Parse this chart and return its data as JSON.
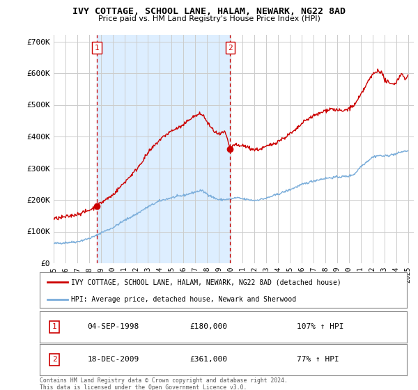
{
  "title": "IVY COTTAGE, SCHOOL LANE, HALAM, NEWARK, NG22 8AD",
  "subtitle": "Price paid vs. HM Land Registry's House Price Index (HPI)",
  "legend_label_red": "IVY COTTAGE, SCHOOL LANE, HALAM, NEWARK, NG22 8AD (detached house)",
  "legend_label_blue": "HPI: Average price, detached house, Newark and Sherwood",
  "annotation1_date": "04-SEP-1998",
  "annotation1_price": "£180,000",
  "annotation1_hpi": "107% ↑ HPI",
  "annotation2_date": "18-DEC-2009",
  "annotation2_price": "£361,000",
  "annotation2_hpi": "77% ↑ HPI",
  "footnote": "Contains HM Land Registry data © Crown copyright and database right 2024.\nThis data is licensed under the Open Government Licence v3.0.",
  "red_color": "#cc0000",
  "blue_color": "#7aadda",
  "shade_color": "#ddeeff",
  "background_color": "#ffffff",
  "grid_color": "#cccccc",
  "ylim": [
    0,
    720000
  ],
  "yticks": [
    0,
    100000,
    200000,
    300000,
    400000,
    500000,
    600000,
    700000
  ],
  "ytick_labels": [
    "£0",
    "£100K",
    "£200K",
    "£300K",
    "£400K",
    "£500K",
    "£600K",
    "£700K"
  ],
  "purchase1_x": 1998.67,
  "purchase1_y": 180000,
  "purchase2_x": 2009.96,
  "purchase2_y": 361000,
  "xmin": 1995.0,
  "xmax": 2025.5
}
